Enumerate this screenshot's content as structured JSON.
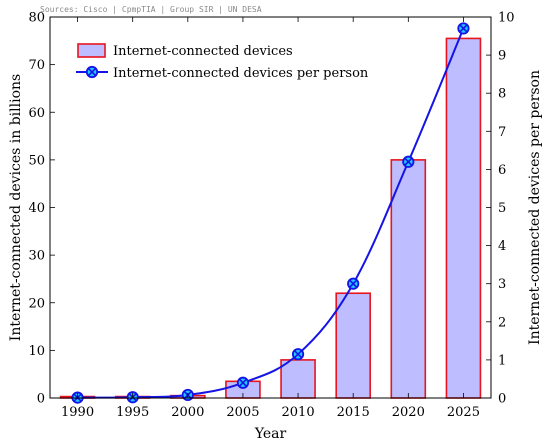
{
  "source_note": "Sources:  Cisco | CpmpTIA | Group SIR | UN DESA",
  "chart_data": {
    "type": "bar",
    "categories": [
      "1990",
      "1995",
      "2000",
      "2005",
      "2010",
      "2015",
      "2020",
      "2025"
    ],
    "series": [
      {
        "name": "Internet-connected devices",
        "type": "bar",
        "axis": "left",
        "values": [
          0.3,
          0.3,
          0.5,
          3.5,
          8.0,
          22.0,
          50.0,
          75.5
        ],
        "fill": "#bdbdff",
        "stroke": "#e8141e"
      },
      {
        "name": "Internet-connected devices per person",
        "type": "line",
        "axis": "right",
        "values": [
          0.01,
          0.02,
          0.08,
          0.4,
          1.15,
          3.0,
          6.2,
          9.7
        ],
        "stroke": "#1414e6",
        "marker_fill": "#1fc6ff"
      }
    ],
    "title": "",
    "xlabel": "Year",
    "ylabel": "Internet-connected devices in billions",
    "y2label": "Internet-connected devices per person",
    "ylim": [
      0,
      80
    ],
    "y2lim": [
      0,
      10
    ],
    "yticks": [
      0,
      10,
      20,
      30,
      40,
      50,
      60,
      70,
      80
    ],
    "y2ticks": [
      0,
      1,
      2,
      3,
      4,
      5,
      6,
      7,
      8,
      9,
      10
    ],
    "grid": false,
    "legend_position": "top-left"
  }
}
